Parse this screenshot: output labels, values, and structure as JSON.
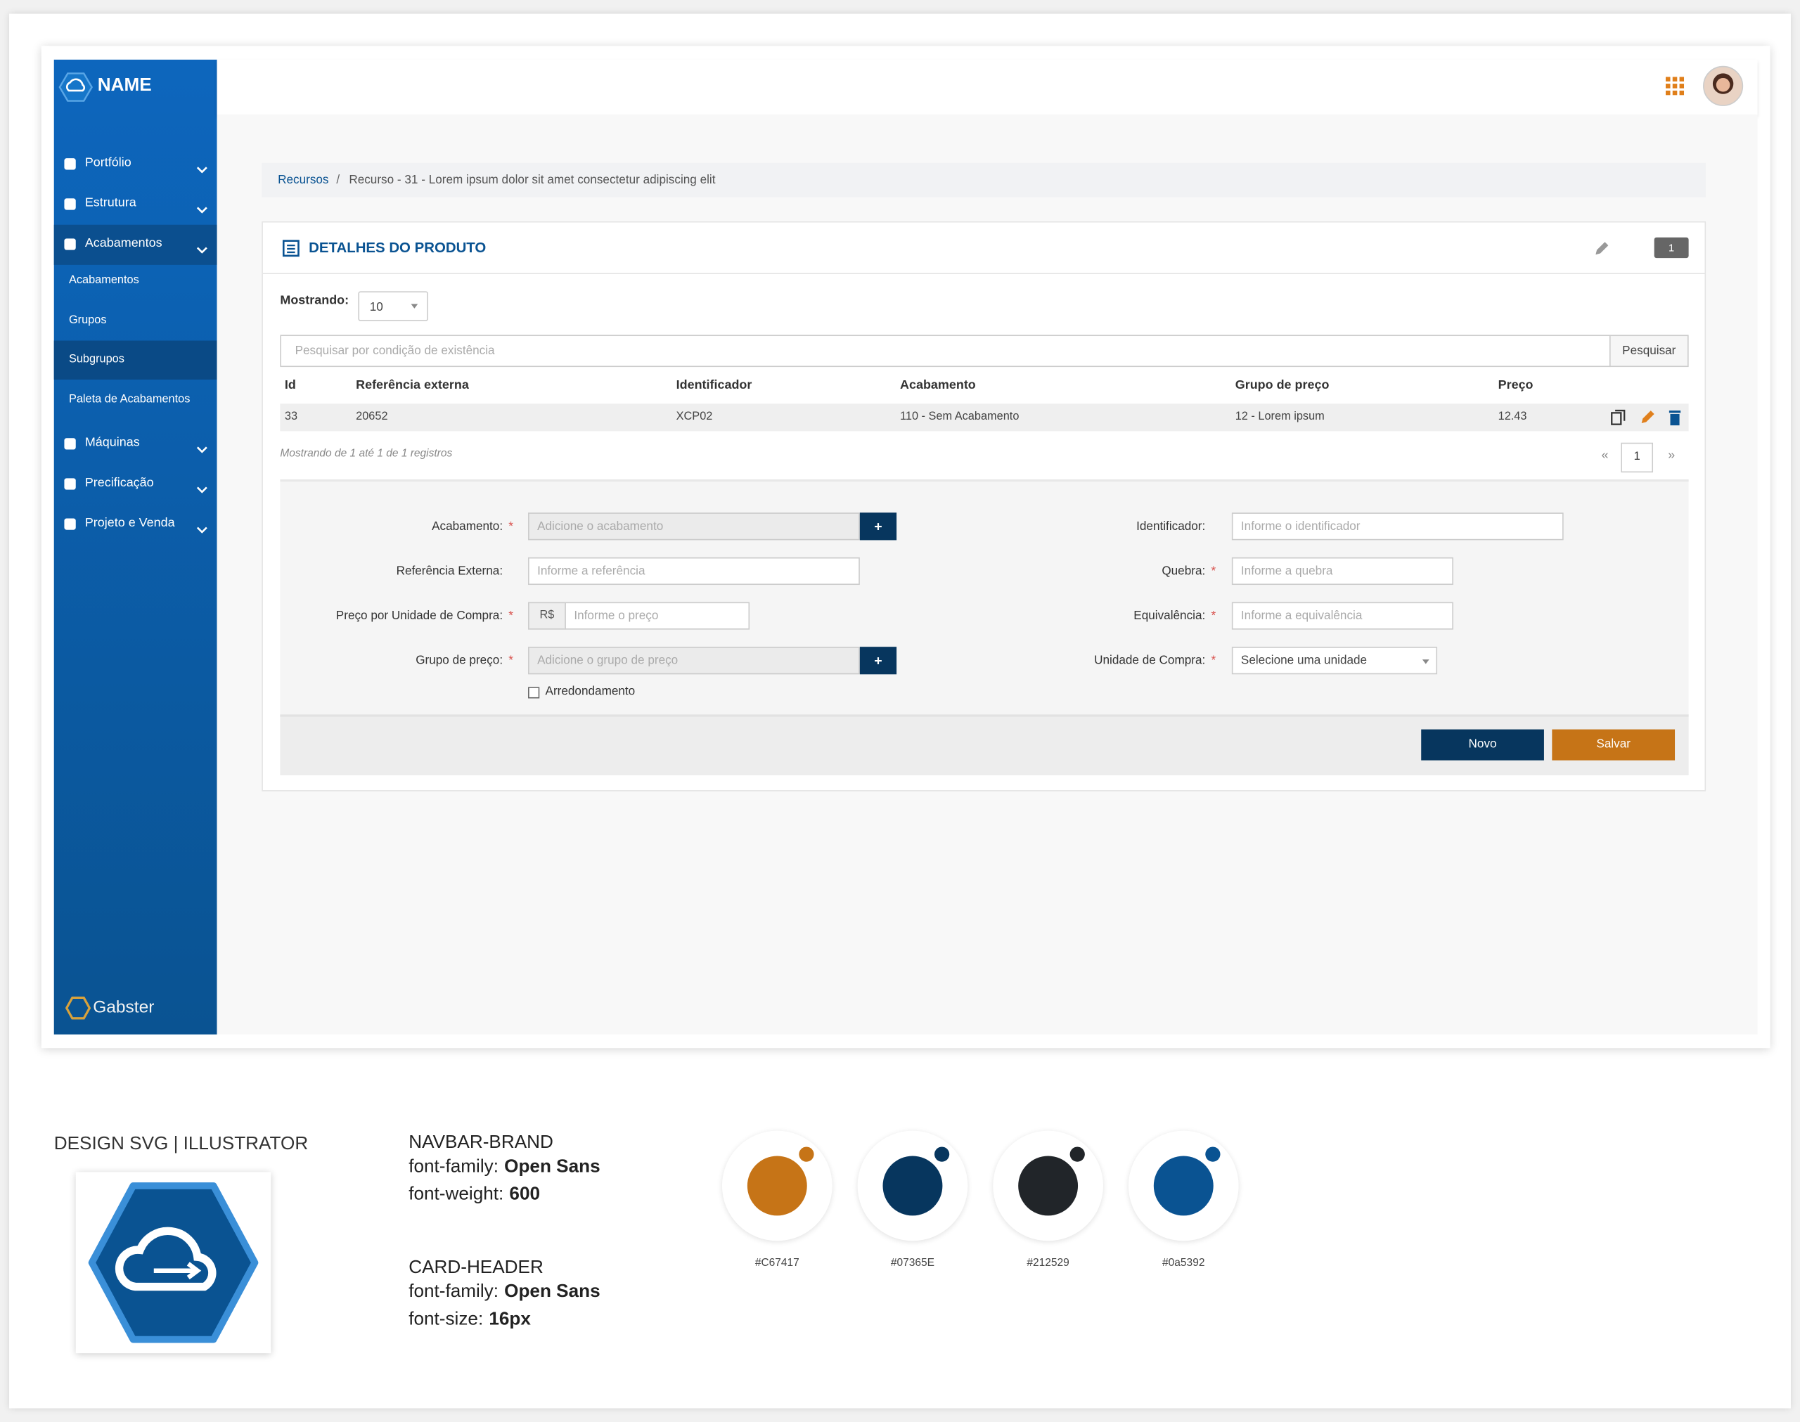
{
  "sidebar": {
    "brand": "NAME",
    "items": [
      {
        "label": "Portfólio"
      },
      {
        "label": "Estrutura"
      },
      {
        "label": "Acabamentos",
        "children": [
          "Acabamentos",
          "Grupos",
          "Subgrupos",
          "Paleta de Acabamentos"
        ]
      },
      {
        "label": "Máquinas"
      },
      {
        "label": "Precificação"
      },
      {
        "label": "Projeto e Venda"
      }
    ],
    "footer_logo": "Gabster"
  },
  "breadcrumb": {
    "items": [
      "Recursos",
      "Recurso - 31 - Lorem ipsum dolor sit amet consectetur adipiscing elit"
    ],
    "separator": "/"
  },
  "card": {
    "title": "DETALHES DO PRODUTO",
    "badge": 1,
    "showing_label": "Mostrando:",
    "page_size": 10,
    "search_placeholder": "Pesquisar por condição de existência",
    "search_button": "Pesquisar",
    "table": {
      "headers": [
        "Id",
        "Referência externa",
        "Identificador",
        "Acabamento",
        "Grupo de preço",
        "Preço"
      ],
      "rows": [
        [
          33,
          20652,
          "XCP02",
          "110 - Sem Acabamento",
          "12 - Lorem ipsum",
          12.43
        ]
      ]
    },
    "info": "Mostrando de 1 até 1 de 1 registros",
    "pagination": [
      "«",
      "1",
      "»"
    ],
    "form": {
      "required_mark": "*",
      "add_button": "+",
      "left": [
        {
          "label": "Acabamento:",
          "placeholder": "Adicione o acabamento",
          "required": true,
          "kind": "add"
        },
        {
          "label": "Referência Externa:",
          "placeholder": "Informe a referência"
        },
        {
          "label": "Preço por Unidade de Compra:",
          "prefix": "R$",
          "placeholder": "Informe o preço",
          "required": true
        },
        {
          "label": "Grupo de preço:",
          "placeholder": "Adicione o grupo de preço",
          "required": true,
          "kind": "add"
        }
      ],
      "checkbox": "Arredondamento",
      "right": [
        {
          "label": "Identificador:",
          "placeholder": "Informe o identificador"
        },
        {
          "label": "Quebra:",
          "placeholder": "Informe a quebra",
          "required": true
        },
        {
          "label": "Equivalência:",
          "placeholder": "Informe a equivalência",
          "required": true
        },
        {
          "label": "Unidade de Compra:",
          "placeholder": "Selecione uma unidade",
          "required": true,
          "kind": "select"
        }
      ]
    },
    "buttons": [
      "Novo",
      "Salvar"
    ]
  },
  "style_guide": {
    "logo_title": "DESIGN SVG | ILLUSTRATOR",
    "fonts": [
      {
        "name": "NAVBAR-BRAND",
        "props": [
          {
            "key": "font-family:",
            "value": "Open Sans"
          },
          {
            "key": "font-weight:",
            "value": 600
          }
        ]
      },
      {
        "name": "CARD-HEADER",
        "props": [
          {
            "key": "font-family:",
            "value": "Open Sans"
          },
          {
            "key": "font-size:",
            "value": "16px"
          }
        ]
      }
    ],
    "colors": [
      "#C67417",
      "#07365E",
      "#212529",
      "#0a5392"
    ]
  }
}
